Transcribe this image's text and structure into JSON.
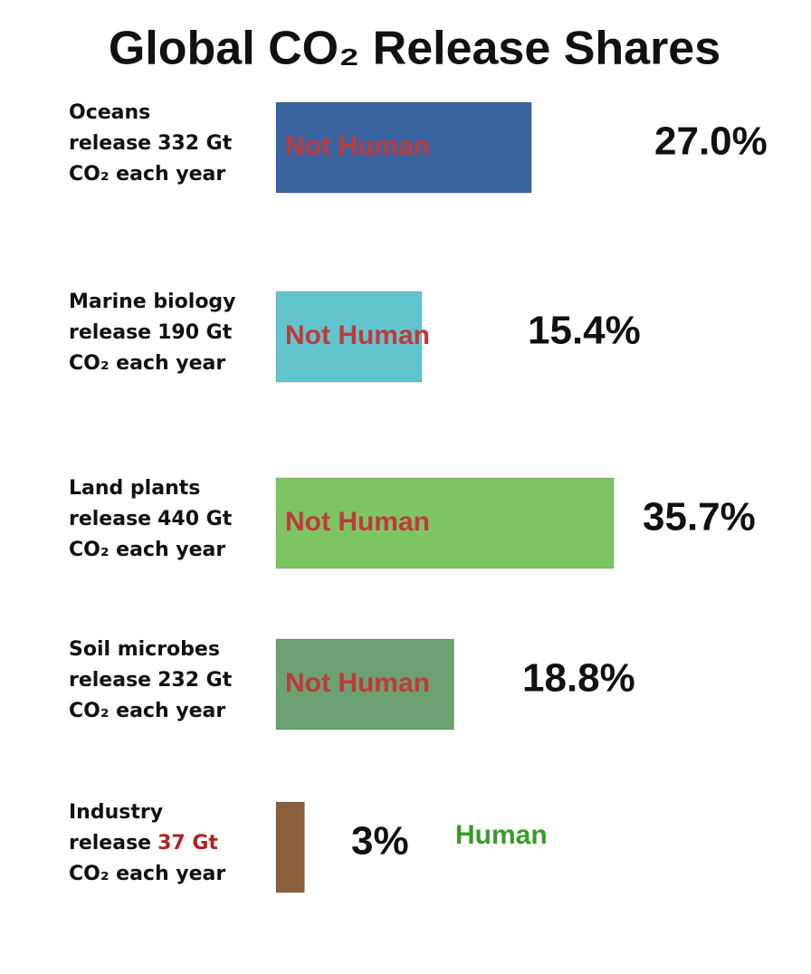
{
  "chart_data": {
    "type": "bar",
    "orientation": "horizontal",
    "title": "Global CO₂ Release Shares",
    "categories": [
      "Oceans",
      "Marine biology",
      "Land plants",
      "Soil microbes",
      "Industry"
    ],
    "release_words": [
      "release",
      "release",
      "release",
      "release",
      "release"
    ],
    "amounts": [
      "332 Gt",
      "190 Gt",
      "440 Gt",
      "232 Gt",
      "37 Gt"
    ],
    "amount_colors": [
      "#111111",
      "#111111",
      "#111111",
      "#111111",
      "#b22222"
    ],
    "tails": [
      "CO₂ each year",
      "CO₂ each year",
      "CO₂ each year",
      "CO₂ each year",
      "CO₂ each year"
    ],
    "values": [
      27.0,
      15.4,
      35.7,
      18.8,
      3
    ],
    "value_labels": [
      "27.0%",
      "15.4%",
      "35.7%",
      "18.8%",
      "3%"
    ],
    "colors": [
      "#3a64a0",
      "#62c4cc",
      "#7dc462",
      "#6ca174",
      "#8b5e3c"
    ],
    "bar_labels": [
      "Not Human",
      "Not Human",
      "Not Human",
      "Not Human",
      "Human"
    ],
    "bar_label_colors": [
      "#c0393b",
      "#c0393b",
      "#c0393b",
      "#c0393b",
      "#3a9a2a"
    ]
  }
}
